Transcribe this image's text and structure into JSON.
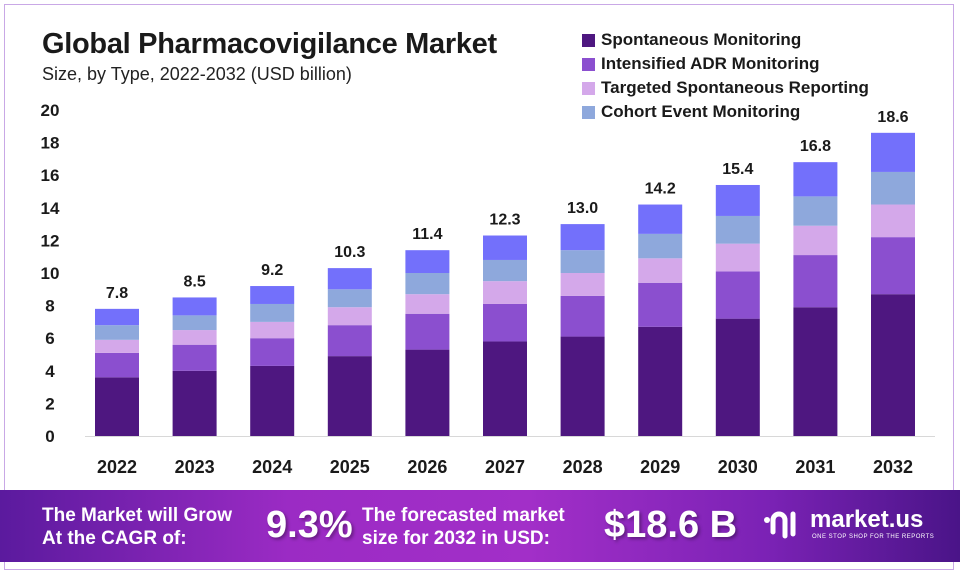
{
  "chart_data": {
    "type": "bar",
    "stacked": true,
    "title": "Global Pharmacovigilance Market",
    "subtitle": "Size, by Type, 2022-2032 (USD billion)",
    "categories": [
      "2022",
      "2023",
      "2024",
      "2025",
      "2026",
      "2027",
      "2028",
      "2029",
      "2030",
      "2031",
      "2032"
    ],
    "totals": [
      "7.8",
      "8.5",
      "9.2",
      "10.3",
      "11.4",
      "12.3",
      "13.0",
      "14.2",
      "15.4",
      "16.8",
      "18.6"
    ],
    "series": [
      {
        "name": "Spontaneous Monitoring",
        "color": "#4e1780",
        "values": [
          3.6,
          4.0,
          4.3,
          4.9,
          5.3,
          5.8,
          6.1,
          6.7,
          7.2,
          7.9,
          8.7
        ]
      },
      {
        "name": "Intensified ADR Monitoring",
        "color": "#8b4fcf",
        "values": [
          1.5,
          1.6,
          1.7,
          1.9,
          2.2,
          2.3,
          2.5,
          2.7,
          2.9,
          3.2,
          3.5
        ]
      },
      {
        "name": "Targeted Spontaneous Reporting",
        "color": "#d4a8ea",
        "values": [
          0.8,
          0.9,
          1.0,
          1.1,
          1.2,
          1.4,
          1.4,
          1.5,
          1.7,
          1.8,
          2.0
        ]
      },
      {
        "name": "Cohort Event Monitoring",
        "color": "#8ea8dc",
        "values": [
          0.9,
          0.9,
          1.1,
          1.1,
          1.3,
          1.3,
          1.4,
          1.5,
          1.7,
          1.8,
          2.0
        ]
      },
      {
        "color": "#7370fb",
        "values": [
          1.0,
          1.1,
          1.1,
          1.3,
          1.4,
          1.5,
          1.6,
          1.8,
          1.9,
          2.1,
          2.4
        ]
      }
    ],
    "yticks": [
      "0",
      "2",
      "4",
      "6",
      "8",
      "10",
      "12",
      "14",
      "16",
      "18",
      "20"
    ],
    "ylim": [
      0,
      20
    ],
    "grid": false,
    "legend": "top-right"
  },
  "banner": {
    "cagr_label_1": "The Market will Grow",
    "cagr_label_2": "At the CAGR of:",
    "cagr_value": "9.3%",
    "forecast_label_1": "The forecasted market",
    "forecast_label_2": "size for 2032 in USD:",
    "forecast_value": "$18.6 B",
    "logo_name": "market.us",
    "logo_tagline": "ONE STOP SHOP FOR THE REPORTS"
  }
}
